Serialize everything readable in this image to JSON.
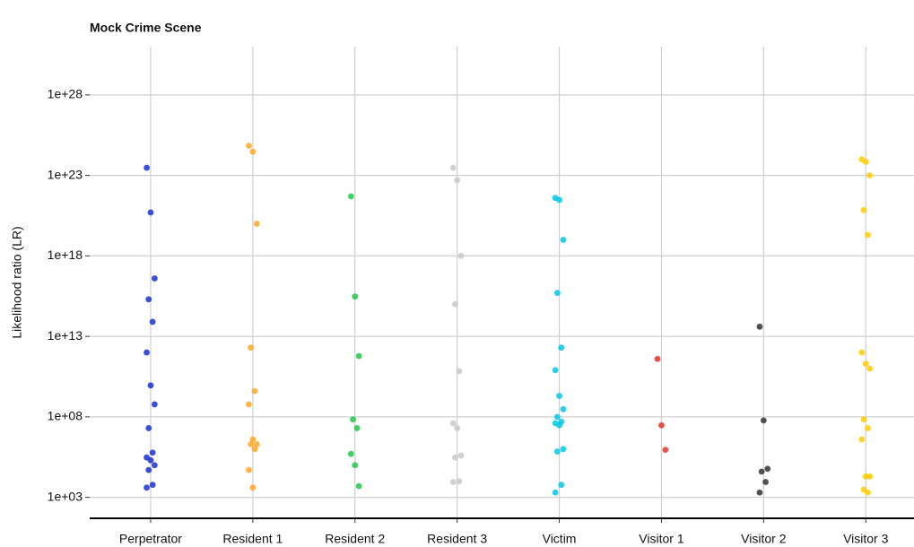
{
  "chart_data": {
    "type": "strip",
    "title": "Mock Crime Scene",
    "ylabel": "Likelihood ratio (LR)",
    "log_scale": true,
    "grid": true,
    "ylim": [
      50,
      1e+31
    ],
    "yticks": [
      {
        "value": 1000.0,
        "label": "1e+03"
      },
      {
        "value": 100000000.0,
        "label": "1e+08"
      },
      {
        "value": 10000000000000.0,
        "label": "1e+13"
      },
      {
        "value": 1e+18,
        "label": "1e+18"
      },
      {
        "value": 1e+23,
        "label": "1e+23"
      },
      {
        "value": 1e+28,
        "label": "1e+28"
      }
    ],
    "series": [
      {
        "name": "Perpetrator",
        "color": "#1a2fd6",
        "values": [
          3e+23,
          5e+20,
          4e+16,
          2000000000000000.0,
          80000000000000.0,
          1000000000000.0,
          9000000000.0,
          600000000.0,
          20000000.0,
          600000.0,
          300000.0,
          200000.0,
          100000.0,
          50000.0,
          6000.0,
          4000.0
        ]
      },
      {
        "name": "Resident 1",
        "color": "#ffa726",
        "values": [
          7e+24,
          3e+24,
          1e+20,
          2000000000000.0,
          4000000000.0,
          600000000.0,
          4000000.0,
          2000000.0,
          2000000.0,
          1000000.0,
          50000.0,
          4000.0
        ]
      },
      {
        "name": "Resident 2",
        "color": "#1ec94a",
        "values": [
          5e+21,
          3000000000000000.0,
          600000000000.0,
          70000000.0,
          20000000.0,
          500000.0,
          100000.0,
          5000.0
        ]
      },
      {
        "name": "Resident 3",
        "color": "#c8c8c8",
        "values": [
          3e+23,
          5e+22,
          1e+18,
          1000000000000000.0,
          70000000000.0,
          40000000.0,
          20000000.0,
          400000.0,
          300000.0,
          10000.0,
          9000.0
        ]
      },
      {
        "name": "Victim",
        "color": "#00c8e6",
        "values": [
          4e+21,
          3e+21,
          1e+19,
          5000000000000000.0,
          2000000000000.0,
          80000000000.0,
          2000000000.0,
          300000000.0,
          100000000.0,
          50000000.0,
          40000000.0,
          30000000.0,
          1000000.0,
          700000.0,
          6000.0,
          2000.0
        ]
      },
      {
        "name": "Visitor 1",
        "color": "#e8322a",
        "values": [
          400000000000.0,
          30000000.0,
          900000.0
        ]
      },
      {
        "name": "Visitor 2",
        "color": "#333333",
        "values": [
          40000000000000.0,
          60000000.0,
          60000.0,
          40000.0,
          9000.0,
          2000.0
        ]
      },
      {
        "name": "Visitor 3",
        "color": "#ffcc00",
        "values": [
          1e+24,
          7e+23,
          1e+23,
          7e+20,
          2e+19,
          1000000000000.0,
          200000000000.0,
          100000000000.0,
          70000000.0,
          20000000.0,
          4000000.0,
          20000.0,
          20000.0,
          3000.0,
          2000.0
        ]
      }
    ]
  }
}
